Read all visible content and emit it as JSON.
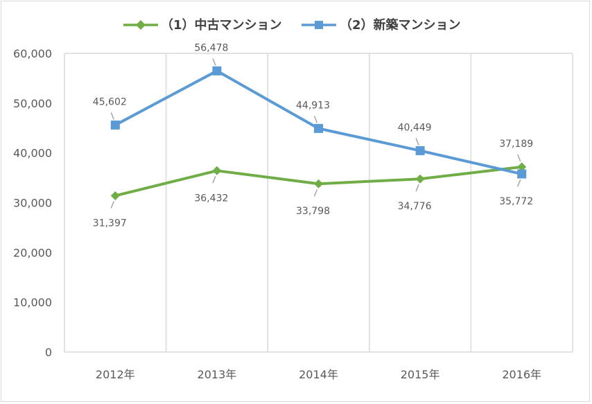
{
  "chart_data": {
    "type": "line",
    "title": "",
    "xlabel": "",
    "ylabel": "",
    "categories": [
      "2012年",
      "2013年",
      "2014年",
      "2015年",
      "2016年"
    ],
    "ylim": [
      0,
      60000
    ],
    "yticks": [
      0,
      10000,
      20000,
      30000,
      40000,
      50000,
      60000
    ],
    "ytick_labels": [
      "0",
      "10,000",
      "20,000",
      "30,000",
      "40,000",
      "50,000",
      "60,000"
    ],
    "grid": "vertical",
    "legend_position": "top",
    "series": [
      {
        "name": "（1）中古マンション",
        "values": [
          31397,
          36432,
          33798,
          34776,
          37189
        ],
        "labels": [
          "31,397",
          "36,432",
          "33,798",
          "34,776",
          "37,189"
        ],
        "label_positions": [
          "below",
          "below",
          "below",
          "below",
          "above"
        ],
        "color": "#70ad47",
        "marker": "diamond"
      },
      {
        "name": "（2）新築マンション",
        "values": [
          45602,
          56478,
          44913,
          40449,
          35772
        ],
        "labels": [
          "45,602",
          "56,478",
          "44,913",
          "40,449",
          "35,772"
        ],
        "label_positions": [
          "above",
          "above",
          "above",
          "above",
          "below"
        ],
        "color": "#5b9bd5",
        "marker": "square"
      }
    ]
  }
}
